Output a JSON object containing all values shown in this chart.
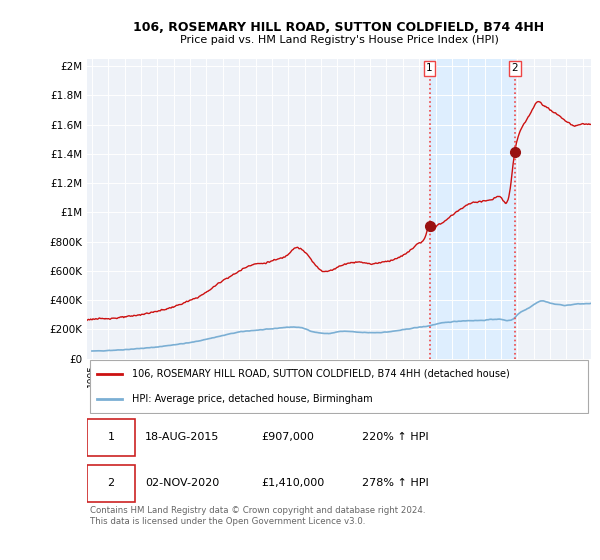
{
  "title": "106, ROSEMARY HILL ROAD, SUTTON COLDFIELD, B74 4HH",
  "subtitle": "Price paid vs. HM Land Registry's House Price Index (HPI)",
  "ylabel_ticks": [
    "£0",
    "£200K",
    "£400K",
    "£600K",
    "£800K",
    "£1M",
    "£1.2M",
    "£1.4M",
    "£1.6M",
    "£1.8M",
    "£2M"
  ],
  "ytick_values": [
    0,
    200000,
    400000,
    600000,
    800000,
    1000000,
    1200000,
    1400000,
    1600000,
    1800000,
    2000000
  ],
  "ylim": [
    0,
    2050000
  ],
  "xlim_start": 1994.7,
  "xlim_end": 2025.5,
  "sale1_x": 2015.633,
  "sale1_y": 907000,
  "sale2_x": 2020.836,
  "sale2_y": 1410000,
  "hpi_color": "#7bafd4",
  "price_color": "#cc1111",
  "dashed_color": "#ee4444",
  "shade_color": "#ddeeff",
  "background_color": "#eef2f8",
  "legend_label1": "106, ROSEMARY HILL ROAD, SUTTON COLDFIELD, B74 4HH (detached house)",
  "legend_label2": "HPI: Average price, detached house, Birmingham",
  "table_row1": [
    "1",
    "18-AUG-2015",
    "£907,000",
    "220% ↑ HPI"
  ],
  "table_row2": [
    "2",
    "02-NOV-2020",
    "£1,410,000",
    "278% ↑ HPI"
  ],
  "footnote": "Contains HM Land Registry data © Crown copyright and database right 2024.\nThis data is licensed under the Open Government Licence v3.0."
}
